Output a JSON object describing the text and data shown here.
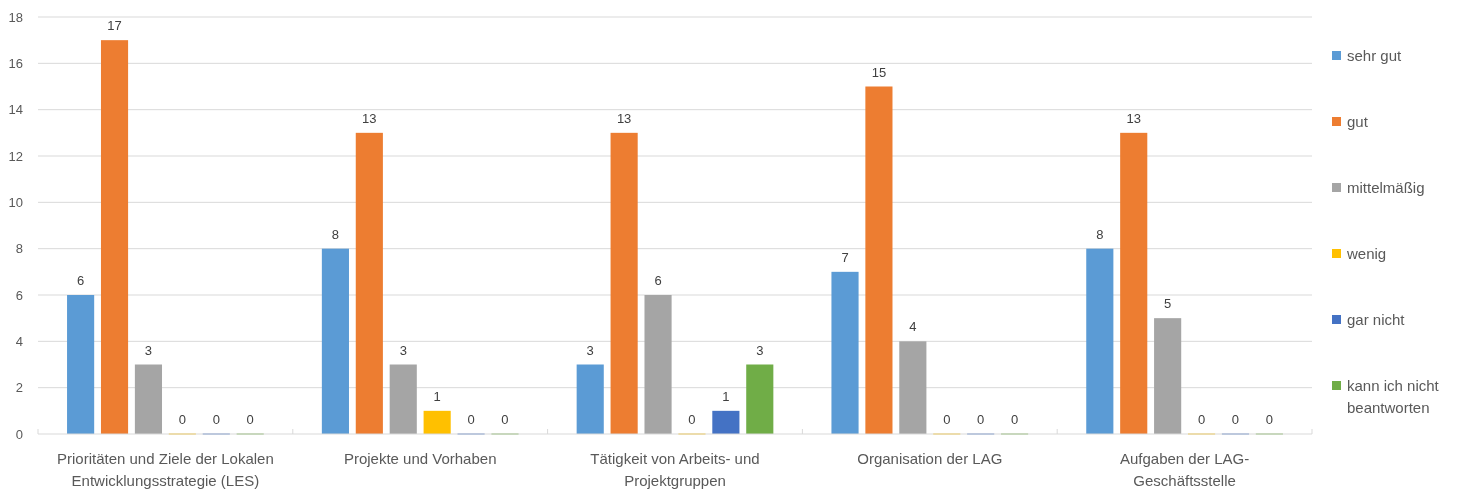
{
  "chart_data": {
    "type": "bar",
    "categories": [
      "Prioritäten und Ziele der Lokalen Entwicklungsstrategie (LES)",
      "Projekte und Vorhaben",
      "Tätigkeit von Arbeits- und Projektgruppen",
      "Organisation der LAG",
      "Aufgaben der LAG-Geschäftsstelle"
    ],
    "series": [
      {
        "name": "sehr gut",
        "color": "#5b9bd5",
        "values": [
          6,
          8,
          3,
          7,
          8
        ]
      },
      {
        "name": "gut",
        "color": "#ed7d31",
        "values": [
          17,
          13,
          13,
          15,
          13
        ]
      },
      {
        "name": "mittelmäßig",
        "color": "#a5a5a5",
        "values": [
          3,
          3,
          6,
          4,
          5
        ]
      },
      {
        "name": "wenig",
        "color": "#ffc000",
        "values": [
          0,
          1,
          0,
          0,
          0
        ]
      },
      {
        "name": "gar nicht",
        "color": "#4472c4",
        "values": [
          0,
          0,
          1,
          0,
          0
        ]
      },
      {
        "name": "kann ich nicht beantworten",
        "color": "#70ad47",
        "values": [
          0,
          0,
          3,
          0,
          0
        ]
      }
    ],
    "ylim": [
      0,
      18
    ],
    "yticks": [
      0,
      2,
      4,
      6,
      8,
      10,
      12,
      14,
      16,
      18
    ],
    "grid": "y",
    "legend": "right",
    "data_labels": true
  }
}
